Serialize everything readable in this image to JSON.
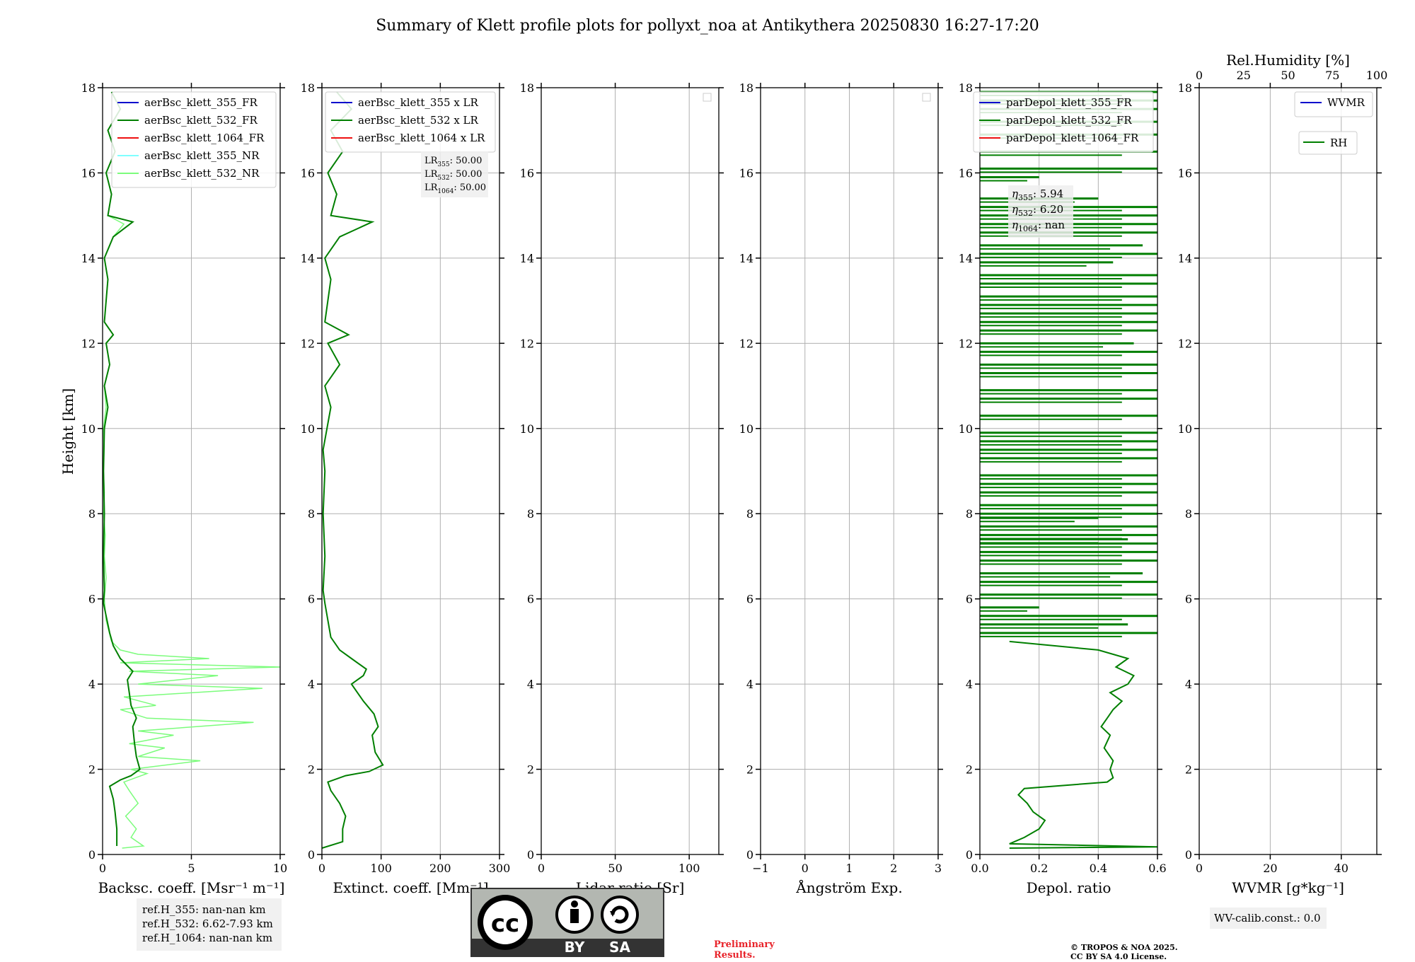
{
  "title": "Summary of Klett profile plots for pollyxt_noa at Antikythera 20250830 16:27-17:20",
  "y_axis_label": "Height [km]",
  "y_ticks": [
    "0",
    "2",
    "4",
    "6",
    "8",
    "10",
    "12",
    "14",
    "16",
    "18"
  ],
  "chart_data": [
    {
      "id": "backscatter",
      "type": "line",
      "xlabel": "Backsc. coeff. [Msr⁻¹ m⁻¹]",
      "xlim": [
        0,
        10
      ],
      "ylim": [
        0,
        18
      ],
      "xticks": [
        0,
        5,
        10
      ],
      "xtick_labels": [
        "0",
        "5",
        "10"
      ],
      "legend": [
        "aerBsc_klett_355_FR",
        "aerBsc_klett_532_FR",
        "aerBsc_klett_1064_FR",
        "aerBsc_klett_355_NR",
        "aerBsc_klett_532_NR"
      ],
      "legend_colors": [
        "#0000cc",
        "#007f00",
        "#ee1111",
        "#7fffff",
        "#7cfc7c"
      ],
      "legend_position": "top-right",
      "grid": true,
      "series": [
        {
          "name": "aerBsc_klett_532_NR",
          "color": "#7cfc7c",
          "points": [
            [
              1.1,
              0.15
            ],
            [
              2.3,
              0.2
            ],
            [
              1.6,
              0.4
            ],
            [
              1.9,
              0.6
            ],
            [
              1.3,
              0.9
            ],
            [
              2.0,
              1.2
            ],
            [
              1.5,
              1.5
            ],
            [
              1.2,
              1.7
            ],
            [
              2.5,
              1.9
            ],
            [
              1.6,
              2.0
            ],
            [
              5.5,
              2.2
            ],
            [
              2.0,
              2.3
            ],
            [
              3.5,
              2.5
            ],
            [
              1.5,
              2.6
            ],
            [
              4.0,
              2.8
            ],
            [
              2.0,
              2.9
            ],
            [
              8.5,
              3.1
            ],
            [
              2.5,
              3.2
            ],
            [
              1.0,
              3.4
            ],
            [
              3.0,
              3.5
            ],
            [
              1.2,
              3.7
            ],
            [
              9.0,
              3.9
            ],
            [
              2.0,
              4.0
            ],
            [
              6.5,
              4.2
            ],
            [
              1.5,
              4.3
            ],
            [
              10,
              4.4
            ],
            [
              1.0,
              4.5
            ],
            [
              6.0,
              4.6
            ],
            [
              2.0,
              4.7
            ],
            [
              1.0,
              4.8
            ],
            [
              0.5,
              5.0
            ],
            [
              0.2,
              5.5
            ],
            [
              0.1,
              6.0
            ],
            [
              0.2,
              6.5
            ],
            [
              0.1,
              7.0
            ],
            [
              0.15,
              7.5
            ],
            [
              0.05,
              8.0
            ],
            [
              0.1,
              8.5
            ],
            [
              0.05,
              9.0
            ],
            [
              0.08,
              9.5
            ],
            [
              0.05,
              10.0
            ],
            [
              0.2,
              10.5
            ],
            [
              0.1,
              11.0
            ],
            [
              0.4,
              11.5
            ],
            [
              0.2,
              12.0
            ],
            [
              0.6,
              12.2
            ],
            [
              0.1,
              12.5
            ],
            [
              0.3,
              13.5
            ],
            [
              0.1,
              14.0
            ],
            [
              0.6,
              14.5
            ],
            [
              1.2,
              14.8
            ],
            [
              0.3,
              15.0
            ],
            [
              0.5,
              15.5
            ],
            [
              0.2,
              16.0
            ],
            [
              0.7,
              16.5
            ],
            [
              0.3,
              17.0
            ],
            [
              1.0,
              17.5
            ],
            [
              0.5,
              17.9
            ]
          ]
        },
        {
          "name": "aerBsc_klett_532_FR",
          "color": "#007f00",
          "points": [
            [
              0.8,
              0.2
            ],
            [
              0.8,
              0.6
            ],
            [
              0.7,
              1.0
            ],
            [
              0.6,
              1.3
            ],
            [
              0.4,
              1.6
            ],
            [
              1.0,
              1.75
            ],
            [
              1.6,
              1.85
            ],
            [
              2.1,
              2.0
            ],
            [
              1.9,
              2.3
            ],
            [
              1.8,
              2.6
            ],
            [
              1.7,
              3.0
            ],
            [
              1.9,
              3.2
            ],
            [
              1.6,
              3.5
            ],
            [
              1.5,
              3.8
            ],
            [
              1.4,
              4.1
            ],
            [
              1.7,
              4.3
            ],
            [
              1.0,
              4.6
            ],
            [
              0.6,
              4.9
            ],
            [
              0.4,
              5.2
            ],
            [
              0.2,
              5.6
            ],
            [
              0.05,
              5.9
            ],
            [
              0.1,
              6.2
            ],
            [
              0.05,
              7.0
            ],
            [
              0.1,
              8.0
            ],
            [
              0.05,
              9.0
            ],
            [
              0.1,
              10.0
            ],
            [
              0.3,
              10.5
            ],
            [
              0.1,
              11.0
            ],
            [
              0.4,
              11.5
            ],
            [
              0.2,
              12.0
            ],
            [
              0.6,
              12.2
            ],
            [
              0.1,
              12.5
            ],
            [
              0.3,
              13.5
            ],
            [
              0.1,
              14.0
            ],
            [
              0.6,
              14.5
            ],
            [
              1.7,
              14.85
            ],
            [
              0.3,
              15.0
            ],
            [
              0.5,
              15.5
            ],
            [
              0.2,
              16.0
            ],
            [
              0.7,
              16.5
            ],
            [
              0.3,
              17.0
            ],
            [
              1.0,
              17.5
            ],
            [
              0.5,
              17.9
            ]
          ]
        }
      ]
    },
    {
      "id": "extinction",
      "type": "line",
      "xlabel": "Extinct. coeff. [Mm⁻¹]",
      "xlim": [
        0,
        300
      ],
      "ylim": [
        0,
        18
      ],
      "xticks": [
        0,
        100,
        200,
        300
      ],
      "xtick_labels": [
        "0",
        "100",
        "200",
        "300"
      ],
      "legend": [
        "aerBsc_klett_355 x LR",
        "aerBsc_klett_532 x LR",
        "aerBsc_klett_1064 x LR"
      ],
      "legend_colors": [
        "#0000cc",
        "#007f00",
        "#ee1111"
      ],
      "legend_position": "top-right",
      "grid": true,
      "annotation": [
        {
          "sub": "355",
          "value": "50.00"
        },
        {
          "sub": "532",
          "value": "50.00"
        },
        {
          "sub": "1064",
          "value": "50.00"
        }
      ],
      "series": [
        {
          "name": "aerBsc_klett_532 x LR",
          "color": "#007f00",
          "points": [
            [
              0,
              0.15
            ],
            [
              35,
              0.3
            ],
            [
              35,
              0.6
            ],
            [
              40,
              0.9
            ],
            [
              30,
              1.2
            ],
            [
              15,
              1.5
            ],
            [
              10,
              1.7
            ],
            [
              40,
              1.85
            ],
            [
              80,
              1.95
            ],
            [
              103,
              2.1
            ],
            [
              90,
              2.4
            ],
            [
              85,
              2.8
            ],
            [
              95,
              3.0
            ],
            [
              88,
              3.3
            ],
            [
              70,
              3.6
            ],
            [
              50,
              4.0
            ],
            [
              70,
              4.2
            ],
            [
              75,
              4.35
            ],
            [
              50,
              4.6
            ],
            [
              30,
              4.8
            ],
            [
              15,
              5.1
            ],
            [
              10,
              5.5
            ],
            [
              5,
              5.9
            ],
            [
              2,
              6.2
            ],
            [
              5,
              7.0
            ],
            [
              2,
              8.0
            ],
            [
              5,
              9.0
            ],
            [
              2,
              9.5
            ],
            [
              15,
              10.5
            ],
            [
              5,
              11.0
            ],
            [
              30,
              11.5
            ],
            [
              10,
              12.0
            ],
            [
              45,
              12.2
            ],
            [
              5,
              12.5
            ],
            [
              15,
              13.5
            ],
            [
              5,
              14.0
            ],
            [
              30,
              14.5
            ],
            [
              85,
              14.85
            ],
            [
              15,
              15.0
            ],
            [
              25,
              15.5
            ],
            [
              10,
              16.0
            ],
            [
              35,
              16.5
            ],
            [
              15,
              17.0
            ],
            [
              50,
              17.5
            ],
            [
              25,
              17.9
            ]
          ]
        }
      ]
    },
    {
      "id": "lidar_ratio",
      "type": "line",
      "xlabel": "Lidar ratio [Sr]",
      "xlim": [
        0,
        120
      ],
      "ylim": [
        0,
        18
      ],
      "xticks": [
        0,
        50,
        100
      ],
      "xtick_labels": [
        "0",
        "50",
        "100"
      ],
      "legend": [],
      "legend_position": "top-right",
      "grid": true,
      "series": []
    },
    {
      "id": "angstrom",
      "type": "line",
      "xlabel": "Ångström Exp.",
      "xlim": [
        -1,
        3
      ],
      "ylim": [
        0,
        18
      ],
      "xticks": [
        -1,
        0,
        1,
        2,
        3
      ],
      "xtick_labels": [
        "−1",
        "0",
        "1",
        "2",
        "3"
      ],
      "legend": [],
      "legend_position": "top-right",
      "grid": true,
      "series": []
    },
    {
      "id": "depol",
      "type": "line",
      "xlabel": "Depol. ratio",
      "xlim": [
        0,
        0.6
      ],
      "ylim": [
        0,
        18
      ],
      "xticks": [
        0,
        0.2,
        0.4,
        0.6
      ],
      "xtick_labels": [
        "0.0",
        "0.2",
        "0.4",
        "0.6"
      ],
      "legend": [
        "parDepol_klett_355_FR",
        "parDepol_klett_532_FR",
        "parDepol_klett_1064_FR"
      ],
      "legend_colors": [
        "#0000cc",
        "#007f00",
        "#ee1111"
      ],
      "legend_position": "top-right",
      "grid": true,
      "annotation": [
        {
          "sub": "355",
          "value": "5.94"
        },
        {
          "sub": "532",
          "value": "6.20"
        },
        {
          "sub": "1064",
          "value": "nan"
        }
      ],
      "series": [
        {
          "name": "parDepol_klett_532_FR",
          "color": "#007f00",
          "points": [
            [
              0.1,
              0.15
            ],
            [
              0.6,
              0.18
            ],
            [
              0.1,
              0.25
            ],
            [
              0.15,
              0.4
            ],
            [
              0.2,
              0.6
            ],
            [
              0.22,
              0.8
            ],
            [
              0.18,
              1.0
            ],
            [
              0.16,
              1.2
            ],
            [
              0.13,
              1.4
            ],
            [
              0.15,
              1.55
            ],
            [
              0.43,
              1.7
            ],
            [
              0.45,
              1.8
            ],
            [
              0.44,
              2.0
            ],
            [
              0.45,
              2.2
            ],
            [
              0.42,
              2.5
            ],
            [
              0.44,
              2.8
            ],
            [
              0.41,
              3.0
            ],
            [
              0.43,
              3.2
            ],
            [
              0.45,
              3.4
            ],
            [
              0.48,
              3.6
            ],
            [
              0.44,
              3.8
            ],
            [
              0.5,
              4.0
            ],
            [
              0.52,
              4.2
            ],
            [
              0.46,
              4.4
            ],
            [
              0.5,
              4.6
            ],
            [
              0.4,
              4.8
            ],
            [
              0.1,
              5.0
            ]
          ]
        }
      ],
      "noise_segments": [
        [
          5.2,
          0.6
        ],
        [
          5.4,
          0.5
        ],
        [
          5.6,
          0.6
        ],
        [
          5.8,
          0.2
        ],
        [
          6.1,
          0.6
        ],
        [
          6.4,
          0.6
        ],
        [
          6.6,
          0.55
        ],
        [
          6.9,
          0.6
        ],
        [
          7.1,
          0.6
        ],
        [
          7.3,
          0.6
        ],
        [
          7.4,
          0.5
        ],
        [
          7.5,
          0.6
        ],
        [
          7.7,
          0.6
        ],
        [
          7.9,
          0.4
        ],
        [
          8.0,
          0.6
        ],
        [
          8.2,
          0.6
        ],
        [
          8.5,
          0.6
        ],
        [
          8.7,
          0.6
        ],
        [
          8.9,
          0.6
        ],
        [
          9.3,
          0.6
        ],
        [
          9.5,
          0.6
        ],
        [
          9.7,
          0.6
        ],
        [
          9.9,
          0.6
        ],
        [
          10.3,
          0.6
        ],
        [
          10.7,
          0.6
        ],
        [
          10.9,
          0.6
        ],
        [
          11.3,
          0.6
        ],
        [
          11.5,
          0.6
        ],
        [
          11.8,
          0.6
        ],
        [
          12.0,
          0.52
        ],
        [
          12.3,
          0.6
        ],
        [
          12.5,
          0.6
        ],
        [
          12.7,
          0.6
        ],
        [
          12.9,
          0.6
        ],
        [
          13.1,
          0.6
        ],
        [
          13.4,
          0.6
        ],
        [
          13.6,
          0.6
        ],
        [
          13.9,
          0.45
        ],
        [
          14.1,
          0.6
        ],
        [
          14.3,
          0.55
        ],
        [
          14.6,
          0.6
        ],
        [
          14.8,
          0.6
        ],
        [
          15.0,
          0.6
        ],
        [
          15.2,
          0.6
        ],
        [
          15.4,
          0.4
        ],
        [
          15.9,
          0.2
        ],
        [
          16.1,
          0.6
        ],
        [
          16.5,
          0.6
        ],
        [
          16.9,
          0.6
        ],
        [
          17.2,
          0.6
        ],
        [
          17.5,
          0.6
        ],
        [
          17.7,
          0.6
        ],
        [
          17.9,
          0.6
        ]
      ]
    },
    {
      "id": "wvmr",
      "type": "line",
      "xlabel": "WVMR [g*kg⁻¹]",
      "xlim": [
        0,
        50
      ],
      "ylim": [
        0,
        18
      ],
      "xticks": [
        0,
        20,
        40
      ],
      "xtick_labels": [
        "0",
        "20",
        "40"
      ],
      "top_axis_label": "Rel.Humidity [%]",
      "top_xlim": [
        0,
        100
      ],
      "top_xticks": [
        0,
        25,
        50,
        75,
        100
      ],
      "top_xtick_labels": [
        "0",
        "25",
        "50",
        "75",
        "100"
      ],
      "legend": [
        "WVMR"
      ],
      "legend_colors": [
        "#0000cc"
      ],
      "legend2": [
        "RH"
      ],
      "legend2_colors": [
        "#007f00"
      ],
      "legend_position": "top-right",
      "grid": true,
      "series": []
    }
  ],
  "ref_heights": [
    "ref.H_355: nan-nan km",
    "ref.H_532: 6.62-7.93 km",
    "ref.H_1064: nan-nan km"
  ],
  "wv_calib": "WV-calib.const.: 0.0",
  "license_badge": {
    "cc": "cc",
    "by": "BY",
    "sa": "SA"
  },
  "preliminary": [
    "Preliminary",
    "Results."
  ],
  "copyright": [
    "© TROPOS & NOA 2025.",
    "CC BY SA 4.0 License."
  ]
}
